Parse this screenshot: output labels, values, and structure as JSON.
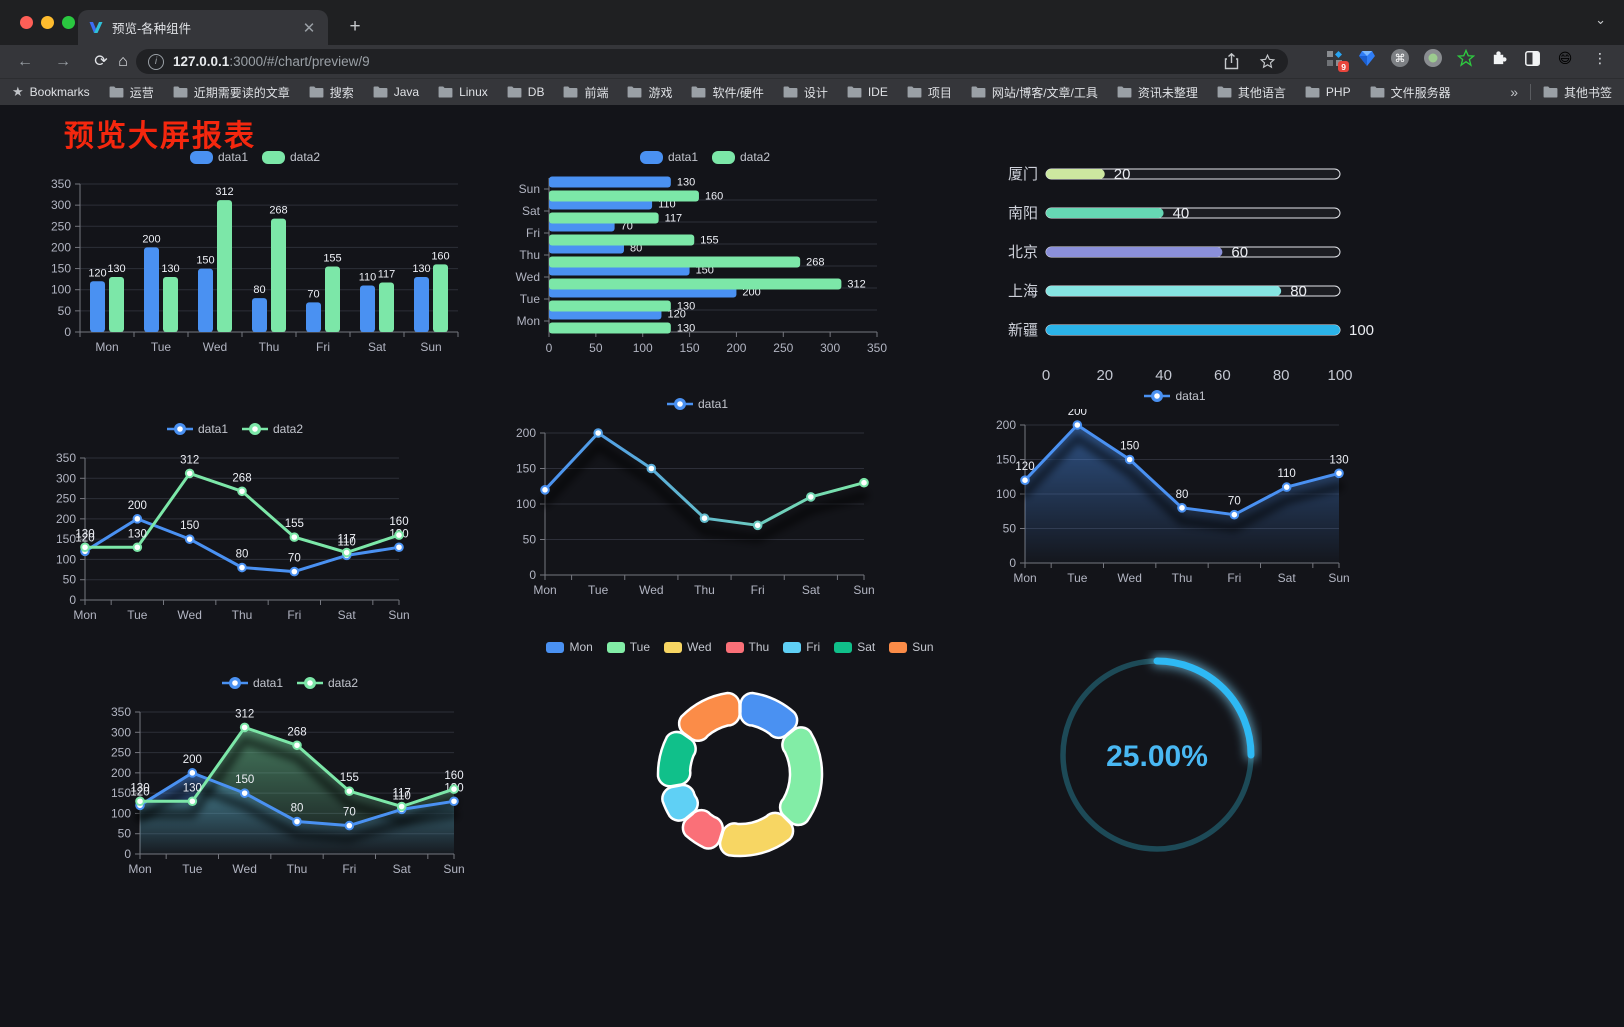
{
  "browser": {
    "tab_title": "预览-各种组件",
    "url_host": "127.0.0.1",
    "url_path": ":3000/#/chart/preview/9",
    "new_tab_label": "+",
    "bookmarks_label": "Bookmarks",
    "bookmarks": [
      "运营",
      "近期需要读的文章",
      "搜索",
      "Java",
      "Linux",
      "DB",
      "前端",
      "游戏",
      "软件/硬件",
      "设计",
      "IDE",
      "项目",
      "网站/博客/文章/工具",
      "资讯未整理",
      "其他语言",
      "PHP",
      "文件服务器"
    ],
    "bookmarks_overflow": "»",
    "other_bookmarks": "其他书签",
    "extension_badge": "9"
  },
  "page": {
    "title": "预览大屏报表",
    "title_color": "#f4270e"
  },
  "theme": {
    "background": "#131419",
    "axis_text": "#b2b5c2",
    "grid_line": "#2d2f39",
    "axis_line": "#75777f",
    "data_label": "#edeff5",
    "legend_text": "#c3c6ce",
    "progress_track_border": "#e3e5ea"
  },
  "chart_data": [
    {
      "id": "bar-grouped",
      "type": "bar",
      "categories": [
        "Mon",
        "Tue",
        "Wed",
        "Thu",
        "Fri",
        "Sat",
        "Sun"
      ],
      "series": [
        {
          "name": "data1",
          "color": "#4a91f2",
          "values": [
            120,
            200,
            150,
            80,
            70,
            110,
            130
          ]
        },
        {
          "name": "data2",
          "color": "#7ce7a8",
          "values": [
            130,
            130,
            312,
            268,
            155,
            117,
            160
          ]
        }
      ],
      "ylim": [
        0,
        350
      ],
      "yticks": [
        0,
        50,
        100,
        150,
        200,
        250,
        300,
        350
      ],
      "labels": true,
      "legend_position": "top",
      "grid": true
    },
    {
      "id": "bar-horizontal",
      "type": "bar-horizontal",
      "categories": [
        "Mon",
        "Tue",
        "Wed",
        "Thu",
        "Fri",
        "Sat",
        "Sun"
      ],
      "series": [
        {
          "name": "data1",
          "color": "#4a91f2",
          "values": [
            120,
            200,
            150,
            80,
            70,
            110,
            130
          ]
        },
        {
          "name": "data2",
          "color": "#7ce7a8",
          "values": [
            130,
            130,
            312,
            268,
            155,
            117,
            160
          ]
        }
      ],
      "xlim": [
        0,
        350
      ],
      "xticks": [
        0,
        50,
        100,
        150,
        200,
        250,
        300,
        350
      ],
      "labels": true,
      "legend_position": "top"
    },
    {
      "id": "progress-list",
      "type": "progress",
      "max": 100,
      "xticks": [
        0,
        20,
        40,
        60,
        80,
        100
      ],
      "items": [
        {
          "label": "厦门",
          "value": 20,
          "color": "#cde8a0"
        },
        {
          "label": "南阳",
          "value": 40,
          "color": "#66d7b4"
        },
        {
          "label": "北京",
          "value": 60,
          "color": "#8b90da"
        },
        {
          "label": "上海",
          "value": 80,
          "color": "#86e5e2"
        },
        {
          "label": "新疆",
          "value": 100,
          "color": "#2bb3e8"
        }
      ]
    },
    {
      "id": "line-two",
      "type": "line",
      "categories": [
        "Mon",
        "Tue",
        "Wed",
        "Thu",
        "Fri",
        "Sat",
        "Sun"
      ],
      "series": [
        {
          "name": "data1",
          "color": "#4a91f2",
          "values": [
            120,
            200,
            150,
            80,
            70,
            110,
            130
          ]
        },
        {
          "name": "data2",
          "color": "#7ce7a8",
          "values": [
            130,
            130,
            312,
            268,
            155,
            117,
            160
          ]
        }
      ],
      "ylim": [
        0,
        350
      ],
      "yticks": [
        0,
        50,
        100,
        150,
        200,
        250,
        300,
        350
      ],
      "labels": true,
      "shadow": false,
      "legend_position": "top"
    },
    {
      "id": "line-gradient",
      "type": "line",
      "categories": [
        "Mon",
        "Tue",
        "Wed",
        "Thu",
        "Fri",
        "Sat",
        "Sun"
      ],
      "series": [
        {
          "name": "data1",
          "gradient": [
            "#4a91f2",
            "#7ce7a8"
          ],
          "values": [
            120,
            200,
            150,
            80,
            70,
            110,
            130
          ]
        }
      ],
      "ylim": [
        0,
        200
      ],
      "yticks": [
        0,
        50,
        100,
        150,
        200
      ],
      "labels": false,
      "shadow": true,
      "legend_position": "top"
    },
    {
      "id": "area-single",
      "type": "line",
      "categories": [
        "Mon",
        "Tue",
        "Wed",
        "Thu",
        "Fri",
        "Sat",
        "Sun"
      ],
      "series": [
        {
          "name": "data1",
          "color": "#4a91f2",
          "values": [
            120,
            200,
            150,
            80,
            70,
            110,
            130
          ],
          "area": true
        }
      ],
      "ylim": [
        0,
        200
      ],
      "yticks": [
        0,
        50,
        100,
        150,
        200
      ],
      "labels": true,
      "shadow": true,
      "legend_position": "top"
    },
    {
      "id": "area-two",
      "type": "line",
      "categories": [
        "Mon",
        "Tue",
        "Wed",
        "Thu",
        "Fri",
        "Sat",
        "Sun"
      ],
      "series": [
        {
          "name": "data1",
          "color": "#4a91f2",
          "values": [
            120,
            200,
            150,
            80,
            70,
            110,
            130
          ],
          "area": true
        },
        {
          "name": "data2",
          "color": "#7ce7a8",
          "values": [
            130,
            130,
            312,
            268,
            155,
            117,
            160
          ],
          "area": true
        }
      ],
      "ylim": [
        0,
        350
      ],
      "yticks": [
        0,
        50,
        100,
        150,
        200,
        250,
        300,
        350
      ],
      "labels": true,
      "shadow": true,
      "legend_position": "top"
    },
    {
      "id": "donut",
      "type": "pie",
      "legend_position": "top",
      "items": [
        {
          "name": "Mon",
          "value": 120,
          "color": "#4a91f2"
        },
        {
          "name": "Tue",
          "value": 200,
          "color": "#82eda6"
        },
        {
          "name": "Wed",
          "value": 150,
          "color": "#f7d663"
        },
        {
          "name": "Thu",
          "value": 80,
          "color": "#fa7078"
        },
        {
          "name": "Fri",
          "value": 70,
          "color": "#5fd0f5"
        },
        {
          "name": "Sat",
          "value": 110,
          "color": "#10c08a"
        },
        {
          "name": "Sun",
          "value": 130,
          "color": "#fb8c48"
        }
      ]
    },
    {
      "id": "gauge",
      "type": "gauge",
      "percent": 25,
      "display": "25.00%",
      "color": "#2eb9f4",
      "glow_color": "#7fd8ff",
      "track_color": "#1d4a57",
      "text_color": "#49b8f3"
    }
  ]
}
